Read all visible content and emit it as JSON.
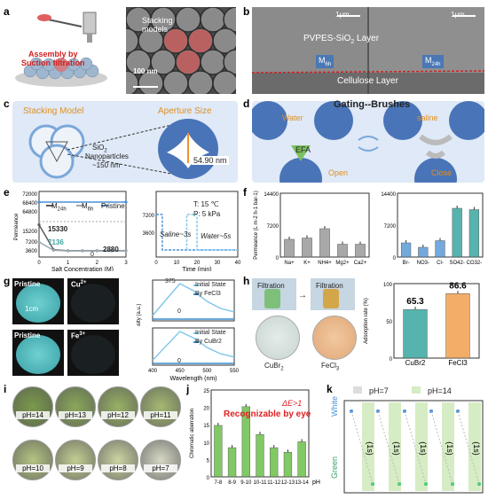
{
  "panels": {
    "a": {
      "label": "a",
      "assembly_text": "Assembly by\nSuction filtration",
      "sem_label": "Stacking\nmodels",
      "scale": "100 nm"
    },
    "b": {
      "label": "b",
      "scale_left": "1μm",
      "scale_right": "1μm",
      "layer_top": "PVPES-SiO",
      "layer_top_sub": "2",
      "layer_top_tail": " Layer",
      "m6": "M",
      "m6_sub": "6h",
      "m24": "M",
      "m24_sub": "24h",
      "layer_bottom": "Cellulose Layer"
    },
    "c": {
      "label": "c",
      "stacking": "Stacking Model",
      "aperture": "Aperture Size",
      "sio2": "SiO",
      "sio2_sub": "2",
      "nano": "Nanoparticles",
      "size": "~150 nm",
      "aperture_value": "54.90 nm"
    },
    "d": {
      "label": "d",
      "title": "Gating--Brushes",
      "water": "Water",
      "saline": "saline",
      "efa": "EFA",
      "open": "Open",
      "close": "Close"
    },
    "e": {
      "label": "e",
      "legend": [
        "M24h",
        "M6h",
        "Pristine"
      ],
      "legend_main": [
        "M",
        "M",
        "Pristine"
      ],
      "legend_sub": [
        "24h",
        "6h",
        ""
      ],
      "annotations": [
        "15330",
        "7136",
        "2880",
        "0"
      ],
      "temp": "T: 15 ℃",
      "pressure": "P: 5 kPa",
      "saline": "Saline~3s",
      "water": "Water~5s"
    },
    "f": {
      "label": "f"
    },
    "g": {
      "label": "g",
      "pristine1": "Pristine",
      "cu": "Cu",
      "cu_sup": "2+",
      "pristine2": "Pristine",
      "fe": "Fe",
      "fe_sup": "3+",
      "scale": "1cm",
      "legend_top": [
        "Initial State",
        "By FeCl3"
      ],
      "legend_bottom": [
        "Initial State",
        "By CuBr2"
      ],
      "peak": "375",
      "zero1": "0",
      "zero2": "0"
    },
    "h": {
      "label": "h",
      "filtration1": "Filtration",
      "filtration2": "Filtration",
      "cubr2": "CuBr",
      "cubr2_sub": "2",
      "fecl3": "FeCl",
      "fecl3_sub": "3"
    },
    "i": {
      "label": "i",
      "ph": [
        "pH=14",
        "pH=13",
        "pH=12",
        "pH=11",
        "pH=10",
        "pH=9",
        "pH=8",
        "pH=7"
      ]
    },
    "j": {
      "label": "j",
      "de": "ΔE>1",
      "recognizable": "Recognizable by eye"
    },
    "k": {
      "label": "k",
      "legend": [
        "pH=7",
        "pH=14"
      ],
      "white": "White",
      "green": "Green",
      "interval": "(1s)"
    }
  },
  "colors": {
    "m24h": "#5b5b5b",
    "m6h": "#9aa9b2",
    "pristine": "#4a90d9",
    "teal": "#3aa6a0",
    "blue_bar": "#5b9bd5",
    "orange": "#f0a050",
    "green_bar": "#6cc04a",
    "red": "#e02020"
  },
  "chart_data": [
    {
      "id": "e-left",
      "type": "line",
      "xlabel": "Salt Concentration (M)",
      "ylabel": "Permeance (L m-2 h-1 bar-1)",
      "x_ticks": [
        "0",
        "1",
        "2",
        "3"
      ],
      "y_ticks": [
        "3600",
        "7200",
        "15200",
        "64800",
        "68400",
        "72000"
      ],
      "series": [
        {
          "name": "M24h",
          "x": [
            0,
            0.5,
            1,
            1.5,
            2,
            2.5,
            3
          ],
          "values": [
            15330,
            3500,
            3000,
            3000,
            3000,
            3000,
            3000
          ]
        },
        {
          "name": "M6h",
          "x": [
            0,
            0.5,
            1,
            1.5,
            2,
            2.5,
            3
          ],
          "values": [
            7136,
            3200,
            2900,
            2900,
            2880,
            2880,
            2880
          ]
        },
        {
          "name": "Pristine",
          "x": [
            0,
            3
          ],
          "values": [
            68400,
            68400
          ]
        }
      ]
    },
    {
      "id": "e-right",
      "type": "line",
      "xlabel": "Time (min)",
      "x_ticks": [
        "0",
        "10",
        "20",
        "30",
        "40"
      ],
      "y_ticks": [
        "3600",
        "7200"
      ],
      "series": [
        {
          "name": "Saline~3s",
          "x": [
            0,
            3,
            3,
            12,
            12,
            15,
            15,
            40
          ],
          "values": [
            7200,
            7200,
            0,
            0,
            0,
            0,
            0,
            0
          ]
        },
        {
          "name": "Water~5s",
          "x": [
            15,
            15,
            20,
            20,
            26,
            26,
            40
          ],
          "values": [
            0,
            7200,
            7200,
            0,
            0,
            0,
            0
          ]
        }
      ]
    },
    {
      "id": "f-left",
      "type": "bar",
      "ylabel": "Permeance (L m-2 h-1 bar-1)",
      "ylim": [
        0,
        14400
      ],
      "y_ticks": [
        "0",
        "7200",
        "14400"
      ],
      "categories": [
        "Na+",
        "K+",
        "NH4+",
        "Mg2+",
        "Ca2+"
      ],
      "values": [
        4000,
        4300,
        6400,
        2900,
        2900
      ]
    },
    {
      "id": "f-right",
      "type": "bar",
      "ylim": [
        0,
        14400
      ],
      "y_ticks": [
        "0",
        "7200",
        "14400"
      ],
      "categories": [
        "Br-",
        "NO3-",
        "Cl-",
        "SO42-",
        "CO32-"
      ],
      "values": [
        3200,
        2200,
        3700,
        11000,
        10700
      ]
    },
    {
      "id": "g-top",
      "type": "line",
      "ylabel": "PL Intensity (a.u.)",
      "series": [
        {
          "name": "Initial State",
          "x": [
            400,
            425,
            450,
            475,
            500,
            525,
            550
          ],
          "values": [
            0.1,
            0.55,
            1.0,
            0.8,
            0.5,
            0.3,
            0.2
          ]
        },
        {
          "name": "By FeCl3",
          "x": [
            400,
            550
          ],
          "values": [
            0,
            0
          ]
        }
      ]
    },
    {
      "id": "g-bottom",
      "type": "line",
      "xlabel": "Wavelength (nm)",
      "x_ticks": [
        "400",
        "450",
        "500",
        "550"
      ],
      "series": [
        {
          "name": "Initial State",
          "x": [
            400,
            425,
            450,
            475,
            500,
            525,
            550
          ],
          "values": [
            0.1,
            0.55,
            1.0,
            0.8,
            0.5,
            0.3,
            0.2
          ]
        },
        {
          "name": "By CuBr2",
          "x": [
            400,
            550
          ],
          "values": [
            0,
            0
          ]
        }
      ]
    },
    {
      "id": "h-bar",
      "type": "bar",
      "ylabel": "Adsorption rate (%)",
      "ylim": [
        0,
        100
      ],
      "y_ticks": [
        "0",
        "50",
        "100"
      ],
      "categories": [
        "CuBr2",
        "FeCl3"
      ],
      "values": [
        65.3,
        86.6
      ],
      "value_labels": [
        "65.3",
        "86.6"
      ]
    },
    {
      "id": "j-bar",
      "type": "bar",
      "ylabel": "Chromatic aberration",
      "xlabel": "pH",
      "ylim": [
        0,
        25
      ],
      "y_ticks": [
        "0",
        "5",
        "10",
        "15",
        "20",
        "25"
      ],
      "categories": [
        "7-8",
        "8-9",
        "9-10",
        "10-11",
        "11-12",
        "12-13",
        "13-14"
      ],
      "values": [
        14.8,
        8.4,
        20.2,
        12.2,
        8.4,
        7.1,
        10.1
      ]
    }
  ]
}
